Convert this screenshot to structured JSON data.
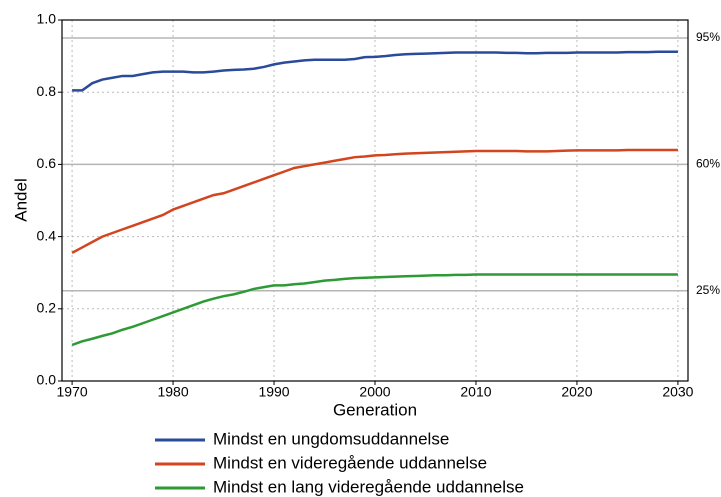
{
  "chart_data": {
    "type": "line",
    "x_label": "Generation",
    "y_label": "Andel",
    "x": [
      1970,
      1971,
      1972,
      1973,
      1974,
      1975,
      1976,
      1977,
      1978,
      1979,
      1980,
      1981,
      1982,
      1983,
      1984,
      1985,
      1986,
      1987,
      1988,
      1989,
      1990,
      1991,
      1992,
      1993,
      1994,
      1995,
      1996,
      1997,
      1998,
      1999,
      2000,
      2001,
      2002,
      2003,
      2004,
      2005,
      2006,
      2007,
      2008,
      2009,
      2010,
      2011,
      2012,
      2013,
      2014,
      2015,
      2016,
      2017,
      2018,
      2019,
      2020,
      2021,
      2022,
      2023,
      2024,
      2025,
      2026,
      2027,
      2028,
      2029,
      2030
    ],
    "xlim": [
      1969,
      2031
    ],
    "xticks": [
      1970,
      1980,
      1990,
      2000,
      2010,
      2020,
      2030
    ],
    "ylim": [
      0,
      1
    ],
    "yticks": [
      {
        "value": 0,
        "label": "0.0"
      },
      0.2,
      0.4,
      0.6,
      0.8,
      {
        "value": 1,
        "label": "1.0"
      }
    ],
    "grid": true,
    "reference_lines": [
      {
        "value": 0.95,
        "label": "95%"
      },
      {
        "value": 0.6,
        "label": "60%"
      },
      {
        "value": 0.25,
        "label": "25%"
      }
    ],
    "series": [
      {
        "name": "Mindst en ungdomsuddannelse",
        "color": "#2a4a9a",
        "values": [
          0.805,
          0.805,
          0.825,
          0.835,
          0.84,
          0.845,
          0.845,
          0.85,
          0.855,
          0.857,
          0.857,
          0.857,
          0.855,
          0.855,
          0.857,
          0.86,
          0.862,
          0.863,
          0.865,
          0.87,
          0.877,
          0.882,
          0.885,
          0.888,
          0.89,
          0.89,
          0.89,
          0.89,
          0.892,
          0.897,
          0.898,
          0.9,
          0.903,
          0.905,
          0.906,
          0.907,
          0.908,
          0.909,
          0.91,
          0.91,
          0.91,
          0.91,
          0.91,
          0.909,
          0.909,
          0.908,
          0.908,
          0.909,
          0.909,
          0.909,
          0.91,
          0.91,
          0.91,
          0.91,
          0.91,
          0.911,
          0.911,
          0.911,
          0.912,
          0.912,
          0.912
        ]
      },
      {
        "name": "Mindst en videregående uddannelse",
        "color": "#d2451e",
        "values": [
          0.355,
          0.37,
          0.385,
          0.4,
          0.41,
          0.42,
          0.43,
          0.44,
          0.45,
          0.46,
          0.475,
          0.485,
          0.495,
          0.505,
          0.515,
          0.52,
          0.53,
          0.54,
          0.55,
          0.56,
          0.57,
          0.58,
          0.59,
          0.595,
          0.6,
          0.605,
          0.61,
          0.615,
          0.62,
          0.622,
          0.625,
          0.626,
          0.628,
          0.63,
          0.631,
          0.632,
          0.633,
          0.634,
          0.635,
          0.636,
          0.637,
          0.637,
          0.637,
          0.637,
          0.637,
          0.636,
          0.636,
          0.636,
          0.637,
          0.638,
          0.639,
          0.639,
          0.639,
          0.639,
          0.639,
          0.64,
          0.64,
          0.64,
          0.64,
          0.64,
          0.64
        ]
      },
      {
        "name": "Mindst en lang videregående uddannelse",
        "color": "#2e9a35",
        "values": [
          0.1,
          0.11,
          0.117,
          0.125,
          0.132,
          0.142,
          0.15,
          0.16,
          0.17,
          0.18,
          0.19,
          0.2,
          0.21,
          0.22,
          0.228,
          0.235,
          0.24,
          0.247,
          0.255,
          0.26,
          0.265,
          0.265,
          0.268,
          0.27,
          0.274,
          0.278,
          0.28,
          0.283,
          0.285,
          0.286,
          0.287,
          0.288,
          0.289,
          0.29,
          0.291,
          0.292,
          0.293,
          0.293,
          0.294,
          0.294,
          0.295,
          0.295,
          0.295,
          0.295,
          0.295,
          0.295,
          0.295,
          0.295,
          0.295,
          0.295,
          0.295,
          0.295,
          0.295,
          0.295,
          0.295,
          0.295,
          0.295,
          0.295,
          0.295,
          0.295,
          0.295
        ]
      }
    ]
  }
}
